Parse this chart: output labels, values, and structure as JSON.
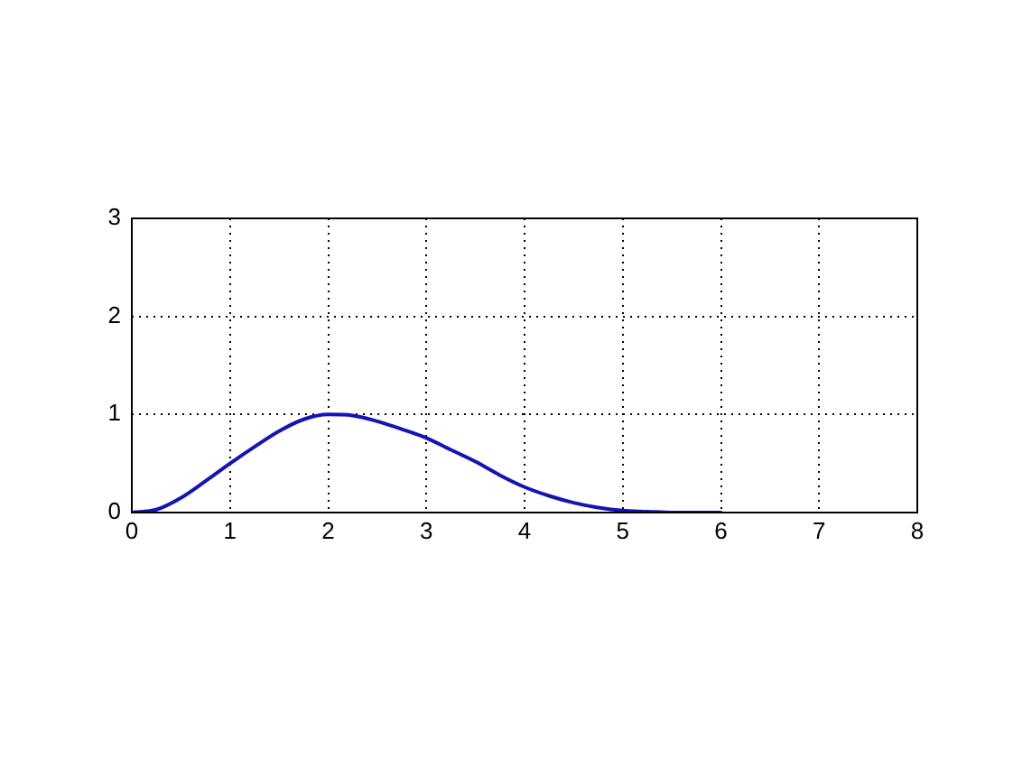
{
  "chart_data": {
    "type": "line",
    "x": [
      0,
      0.25,
      0.5,
      0.75,
      1,
      1.25,
      1.5,
      1.75,
      2,
      2.25,
      2.5,
      2.75,
      3,
      3.25,
      3.5,
      3.75,
      4,
      4.25,
      4.5,
      4.75,
      5,
      5.25,
      5.5,
      5.75,
      6
    ],
    "values": [
      0,
      0.03,
      0.15,
      0.32,
      0.5,
      0.67,
      0.83,
      0.95,
      1,
      0.99,
      0.93,
      0.85,
      0.76,
      0.64,
      0.52,
      0.38,
      0.26,
      0.17,
      0.1,
      0.05,
      0.02,
      0.01,
      0,
      0,
      0
    ],
    "color": "#1414b4",
    "xlim": [
      0,
      8
    ],
    "ylim": [
      0,
      3
    ],
    "xticks": [
      0,
      1,
      2,
      3,
      4,
      5,
      6,
      7,
      8
    ],
    "yticks": [
      0,
      1,
      2,
      3
    ],
    "grid": true,
    "marker": "none",
    "line_style": "solid"
  }
}
